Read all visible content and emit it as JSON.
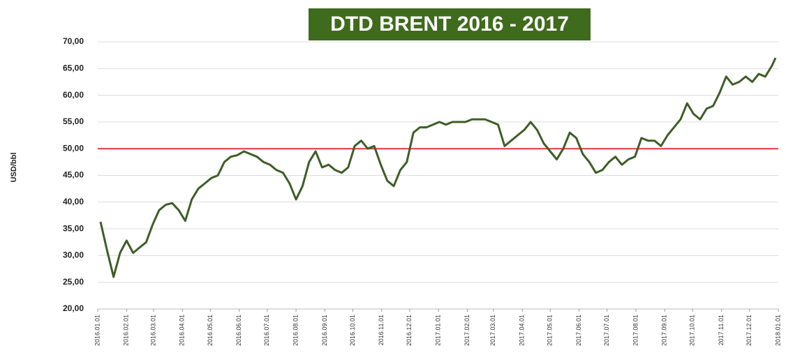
{
  "chart_data": {
    "type": "line",
    "title": "DTD BRENT 2016 - 2017",
    "y_label": "USD/bbl",
    "x": [
      "2016-01-04",
      "2016-01-11",
      "2016-01-18",
      "2016-01-25",
      "2016-02-01",
      "2016-02-08",
      "2016-02-15",
      "2016-02-22",
      "2016-02-29",
      "2016-03-07",
      "2016-03-14",
      "2016-03-21",
      "2016-03-28",
      "2016-04-04",
      "2016-04-11",
      "2016-04-18",
      "2016-04-25",
      "2016-05-02",
      "2016-05-09",
      "2016-05-16",
      "2016-05-23",
      "2016-05-30",
      "2016-06-06",
      "2016-06-13",
      "2016-06-20",
      "2016-06-27",
      "2016-07-04",
      "2016-07-11",
      "2016-07-18",
      "2016-07-25",
      "2016-08-01",
      "2016-08-08",
      "2016-08-15",
      "2016-08-22",
      "2016-08-29",
      "2016-09-05",
      "2016-09-12",
      "2016-09-19",
      "2016-09-26",
      "2016-10-03",
      "2016-10-10",
      "2016-10-17",
      "2016-10-24",
      "2016-10-31",
      "2016-11-07",
      "2016-11-14",
      "2016-11-21",
      "2016-11-28",
      "2016-12-05",
      "2016-12-12",
      "2016-12-19",
      "2016-12-26",
      "2017-01-02",
      "2017-01-09",
      "2017-01-16",
      "2017-01-23",
      "2017-01-30",
      "2017-02-06",
      "2017-02-13",
      "2017-02-20",
      "2017-02-27",
      "2017-03-06",
      "2017-03-13",
      "2017-03-20",
      "2017-03-27",
      "2017-04-03",
      "2017-04-10",
      "2017-04-17",
      "2017-04-24",
      "2017-05-01",
      "2017-05-08",
      "2017-05-15",
      "2017-05-22",
      "2017-05-29",
      "2017-06-05",
      "2017-06-12",
      "2017-06-19",
      "2017-06-26",
      "2017-07-03",
      "2017-07-10",
      "2017-07-17",
      "2017-07-24",
      "2017-07-31",
      "2017-08-07",
      "2017-08-14",
      "2017-08-21",
      "2017-08-28",
      "2017-09-04",
      "2017-09-11",
      "2017-09-18",
      "2017-09-25",
      "2017-10-02",
      "2017-10-09",
      "2017-10-16",
      "2017-10-23",
      "2017-10-30",
      "2017-11-06",
      "2017-11-13",
      "2017-11-20",
      "2017-11-27",
      "2017-12-04",
      "2017-12-11",
      "2017-12-18",
      "2017-12-25",
      "2017-12-29"
    ],
    "series": [
      {
        "color": "#3d5e26",
        "values": [
          36.3,
          31.0,
          26.0,
          30.5,
          32.8,
          30.5,
          31.5,
          32.5,
          35.8,
          38.5,
          39.5,
          39.8,
          38.5,
          36.5,
          40.5,
          42.5,
          43.5,
          44.5,
          45.0,
          47.5,
          48.5,
          48.8,
          49.5,
          49.0,
          48.5,
          47.5,
          47.0,
          46.0,
          45.5,
          43.5,
          40.5,
          43.0,
          47.5,
          49.5,
          46.5,
          47.0,
          46.0,
          45.5,
          46.5,
          50.5,
          51.5,
          50.0,
          50.5,
          47.0,
          44.0,
          43.0,
          46.0,
          47.5,
          53.0,
          54.0,
          54.0,
          54.5,
          55.0,
          54.5,
          55.0,
          55.0,
          55.0,
          55.5,
          55.5,
          55.5,
          55.0,
          54.5,
          50.5,
          51.5,
          52.5,
          53.5,
          55.0,
          53.5,
          51.0,
          49.5,
          48.0,
          50.0,
          53.0,
          52.0,
          49.0,
          47.5,
          45.5,
          46.0,
          47.5,
          48.5,
          47.0,
          48.0,
          48.5,
          52.0,
          51.5,
          51.5,
          50.5,
          52.5,
          54.0,
          55.5,
          58.5,
          56.5,
          55.5,
          57.5,
          58.0,
          60.5,
          63.5,
          62.0,
          62.5,
          63.5,
          62.5,
          64.0,
          63.5,
          65.5,
          67.0
        ]
      }
    ],
    "reference_line": {
      "value": 50,
      "color": "#e8333a"
    },
    "xlim": [
      "2016-01-01",
      "2018-01-01"
    ],
    "xticks": [
      {
        "value": "2016-01-01",
        "label": "2016.01.01"
      },
      {
        "value": "2016-02-01",
        "label": "2016.02.01"
      },
      {
        "value": "2016-03-01",
        "label": "2016.03.01"
      },
      {
        "value": "2016-04-01",
        "label": "2016.04.01"
      },
      {
        "value": "2016-05-01",
        "label": "2016.05.01"
      },
      {
        "value": "2016-06-01",
        "label": "2016.06.01"
      },
      {
        "value": "2016-07-01",
        "label": "2016.07.01"
      },
      {
        "value": "2016-08-01",
        "label": "2016.08.01"
      },
      {
        "value": "2016-09-01",
        "label": "2016.09.01"
      },
      {
        "value": "2016-10-01",
        "label": "2016.10.01"
      },
      {
        "value": "2016-11-01",
        "label": "2016.11.01"
      },
      {
        "value": "2016-12-01",
        "label": "2016.12.01"
      },
      {
        "value": "2017-01-01",
        "label": "2017.01.01"
      },
      {
        "value": "2017-02-01",
        "label": "2017.02.01"
      },
      {
        "value": "2017-03-01",
        "label": "2017.03.01"
      },
      {
        "value": "2017-04-01",
        "label": "2017.04.01"
      },
      {
        "value": "2017-05-01",
        "label": "2017.05.01"
      },
      {
        "value": "2017-06-01",
        "label": "2017.06.01"
      },
      {
        "value": "2017-07-01",
        "label": "2017.07.01"
      },
      {
        "value": "2017-08-01",
        "label": "2017.08.01"
      },
      {
        "value": "2017-09-01",
        "label": "2017.09.01"
      },
      {
        "value": "2017-10-01",
        "label": "2017.10.01"
      },
      {
        "value": "2017-11-01",
        "label": "2017.11.01"
      },
      {
        "value": "2017-12-01",
        "label": "2017.12.01"
      },
      {
        "value": "2018-01-01",
        "label": "2018.01.01"
      }
    ],
    "ylim": [
      20,
      70
    ],
    "yticks": [
      {
        "value": 20,
        "label": "20,00"
      },
      {
        "value": 25,
        "label": "25,00"
      },
      {
        "value": 30,
        "label": "30,00"
      },
      {
        "value": 35,
        "label": "35,00"
      },
      {
        "value": 40,
        "label": "40,00"
      },
      {
        "value": 45,
        "label": "45,00"
      },
      {
        "value": 50,
        "label": "50,00"
      },
      {
        "value": 55,
        "label": "55,00"
      },
      {
        "value": 60,
        "label": "60,00"
      },
      {
        "value": 65,
        "label": "65,00"
      },
      {
        "value": 70,
        "label": "70,00"
      }
    ],
    "grid": true
  }
}
